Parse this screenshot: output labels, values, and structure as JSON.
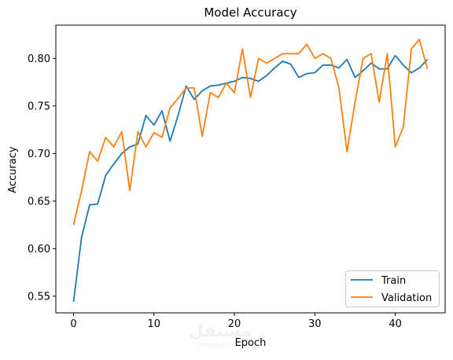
{
  "chart_data": {
    "type": "line",
    "title": "Model Accuracy",
    "xlabel": "Epoch",
    "ylabel": "Accuracy",
    "xlim": [
      -2.2,
      46.2
    ],
    "ylim": [
      0.5325,
      0.835
    ],
    "xticks": [
      0,
      10,
      20,
      30,
      40
    ],
    "xtick_labels": [
      "0",
      "10",
      "20",
      "30",
      "40"
    ],
    "yticks": [
      0.55,
      0.6,
      0.65,
      0.7,
      0.75,
      0.8
    ],
    "ytick_labels": [
      "0.55",
      "0.60",
      "0.65",
      "0.70",
      "0.75",
      "0.80"
    ],
    "grid": false,
    "legend_position": "lower-right",
    "x": [
      0,
      1,
      2,
      3,
      4,
      5,
      6,
      7,
      8,
      9,
      10,
      11,
      12,
      13,
      14,
      15,
      16,
      17,
      18,
      19,
      20,
      21,
      22,
      23,
      24,
      25,
      26,
      27,
      28,
      29,
      30,
      31,
      32,
      33,
      34,
      35,
      36,
      37,
      38,
      39,
      40,
      41,
      42,
      43,
      44
    ],
    "series": [
      {
        "name": "Train",
        "color": "#1f77b4",
        "values": [
          0.544,
          0.612,
          0.646,
          0.647,
          0.677,
          0.689,
          0.7,
          0.707,
          0.71,
          0.74,
          0.73,
          0.745,
          0.713,
          0.74,
          0.771,
          0.757,
          0.766,
          0.771,
          0.772,
          0.774,
          0.776,
          0.78,
          0.779,
          0.776,
          0.782,
          0.79,
          0.797,
          0.794,
          0.78,
          0.784,
          0.785,
          0.793,
          0.793,
          0.79,
          0.799,
          0.78,
          0.787,
          0.795,
          0.789,
          0.789,
          0.803,
          0.793,
          0.785,
          0.79,
          0.799
        ]
      },
      {
        "name": "Validation",
        "color": "#ff7f0e",
        "values": [
          0.625,
          0.661,
          0.702,
          0.692,
          0.717,
          0.707,
          0.723,
          0.661,
          0.723,
          0.707,
          0.722,
          0.717,
          0.748,
          0.758,
          0.769,
          0.769,
          0.718,
          0.764,
          0.759,
          0.774,
          0.764,
          0.81,
          0.759,
          0.8,
          0.795,
          0.8,
          0.805,
          0.805,
          0.805,
          0.815,
          0.8,
          0.805,
          0.8,
          0.769,
          0.702,
          0.754,
          0.8,
          0.805,
          0.754,
          0.805,
          0.707,
          0.728,
          0.81,
          0.82,
          0.789
        ]
      }
    ]
  },
  "watermark": {
    "text": "مستقل",
    "subtext": "mostaql.com"
  }
}
